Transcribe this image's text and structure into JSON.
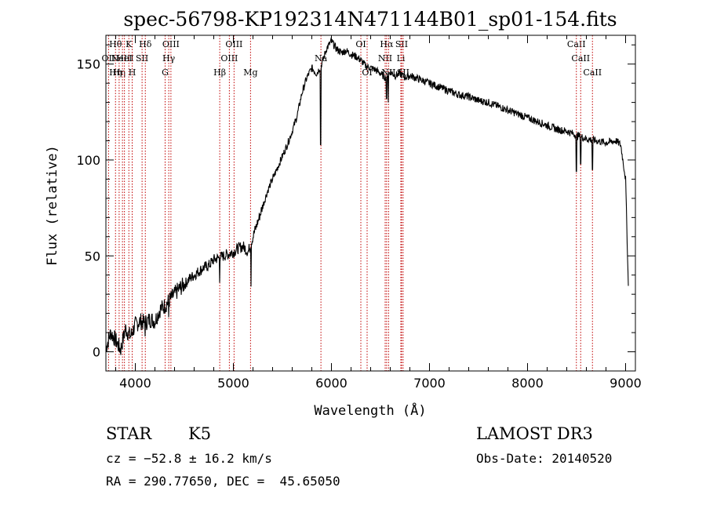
{
  "chart_data": {
    "type": "line",
    "title": "spec-56798-KP192314N471144B01_sp01-154.fits",
    "xlabel": "Wavelength (Å)",
    "ylabel": "Flux (relative)",
    "xlim": [
      3700,
      9100
    ],
    "ylim": [
      -10,
      165
    ],
    "x_ticks": [
      4000,
      5000,
      6000,
      7000,
      8000,
      9000
    ],
    "y_ticks": [
      0,
      50,
      100,
      150
    ],
    "x_tick_labels": [
      "4000",
      "5000",
      "6000",
      "7000",
      "8000",
      "9000"
    ],
    "y_tick_labels": [
      "0",
      "50",
      "100",
      "150"
    ],
    "grid": false,
    "series": [
      {
        "name": "spectrum",
        "color": "#000000",
        "points": [
          [
            3700,
            2
          ],
          [
            3750,
            10
          ],
          [
            3800,
            6
          ],
          [
            3850,
            1
          ],
          [
            3900,
            12
          ],
          [
            3950,
            8
          ],
          [
            4000,
            14
          ],
          [
            4050,
            16
          ],
          [
            4100,
            15
          ],
          [
            4150,
            17
          ],
          [
            4200,
            16
          ],
          [
            4250,
            22
          ],
          [
            4300,
            24
          ],
          [
            4350,
            27
          ],
          [
            4400,
            30
          ],
          [
            4450,
            33
          ],
          [
            4500,
            35
          ],
          [
            4550,
            38
          ],
          [
            4600,
            40
          ],
          [
            4650,
            42
          ],
          [
            4700,
            44
          ],
          [
            4750,
            45
          ],
          [
            4800,
            48
          ],
          [
            4850,
            49
          ],
          [
            4900,
            50
          ],
          [
            4950,
            51
          ],
          [
            5000,
            52
          ],
          [
            5050,
            54
          ],
          [
            5100,
            55
          ],
          [
            5150,
            52
          ],
          [
            5200,
            60
          ],
          [
            5250,
            68
          ],
          [
            5300,
            76
          ],
          [
            5350,
            84
          ],
          [
            5400,
            90
          ],
          [
            5450,
            96
          ],
          [
            5500,
            102
          ],
          [
            5550,
            108
          ],
          [
            5600,
            115
          ],
          [
            5650,
            123
          ],
          [
            5700,
            135
          ],
          [
            5750,
            143
          ],
          [
            5800,
            148
          ],
          [
            5850,
            145
          ],
          [
            5900,
            150
          ],
          [
            5950,
            158
          ],
          [
            6000,
            162
          ],
          [
            6050,
            158
          ],
          [
            6100,
            156
          ],
          [
            6150,
            157
          ],
          [
            6200,
            155
          ],
          [
            6250,
            154
          ],
          [
            6300,
            152
          ],
          [
            6350,
            149
          ],
          [
            6400,
            148
          ],
          [
            6450,
            147
          ],
          [
            6500,
            145
          ],
          [
            6550,
            143
          ],
          [
            6600,
            146
          ],
          [
            6650,
            144
          ],
          [
            6700,
            145
          ],
          [
            6750,
            143
          ],
          [
            6800,
            144
          ],
          [
            6900,
            142
          ],
          [
            7000,
            140
          ],
          [
            7100,
            138
          ],
          [
            7200,
            136
          ],
          [
            7300,
            134
          ],
          [
            7400,
            133
          ],
          [
            7500,
            131
          ],
          [
            7600,
            130
          ],
          [
            7700,
            128
          ],
          [
            7800,
            126
          ],
          [
            7900,
            124
          ],
          [
            8000,
            122
          ],
          [
            8100,
            120
          ],
          [
            8200,
            118
          ],
          [
            8300,
            116
          ],
          [
            8400,
            115
          ],
          [
            8500,
            113
          ],
          [
            8600,
            111
          ],
          [
            8700,
            110
          ],
          [
            8800,
            109
          ],
          [
            8900,
            110
          ],
          [
            8950,
            108
          ],
          [
            9000,
            90
          ],
          [
            9030,
            30
          ]
        ],
        "dips": [
          [
            4100,
            8
          ],
          [
            4340,
            18
          ],
          [
            4860,
            36
          ],
          [
            5180,
            34
          ],
          [
            5890,
            108
          ],
          [
            6563,
            132
          ],
          [
            6580,
            130
          ],
          [
            8498,
            94
          ],
          [
            8542,
            98
          ],
          [
            8662,
            95
          ]
        ]
      }
    ],
    "line_markers": [
      {
        "wavelength": 3727,
        "labels": [
          "OII"
        ],
        "rows": [
          1
        ]
      },
      {
        "wavelength": 3798,
        "labels": [
          "Hθ",
          "Hη"
        ],
        "rows": [
          0,
          2
        ]
      },
      {
        "wavelength": 3835,
        "labels": [
          "Hη"
        ],
        "rows": [
          2
        ]
      },
      {
        "wavelength": 3869,
        "labels": [
          "NeIII"
        ],
        "rows": [
          1
        ]
      },
      {
        "wavelength": 3889,
        "labels": [
          "HeI"
        ],
        "rows": [
          1
        ]
      },
      {
        "wavelength": 3934,
        "labels": [
          "K"
        ],
        "rows": [
          0
        ]
      },
      {
        "wavelength": 3968,
        "labels": [
          "H"
        ],
        "rows": [
          2
        ]
      },
      {
        "wavelength": 4069,
        "labels": [
          "SII"
        ],
        "rows": [
          1
        ]
      },
      {
        "wavelength": 4102,
        "labels": [
          "Hδ"
        ],
        "rows": [
          0
        ]
      },
      {
        "wavelength": 4304,
        "labels": [
          "G"
        ],
        "rows": [
          2
        ]
      },
      {
        "wavelength": 4341,
        "labels": [
          "Hγ"
        ],
        "rows": [
          1
        ]
      },
      {
        "wavelength": 4363,
        "labels": [
          "OIII"
        ],
        "rows": [
          0
        ]
      },
      {
        "wavelength": 4861,
        "labels": [
          "Hβ"
        ],
        "rows": [
          2
        ]
      },
      {
        "wavelength": 4959,
        "labels": [
          "OIII"
        ],
        "rows": [
          1
        ]
      },
      {
        "wavelength": 5007,
        "labels": [
          "OIII"
        ],
        "rows": [
          0
        ]
      },
      {
        "wavelength": 5175,
        "labels": [
          "Mg"
        ],
        "rows": [
          2
        ]
      },
      {
        "wavelength": 5893,
        "labels": [
          "Na"
        ],
        "rows": [
          1
        ]
      },
      {
        "wavelength": 6300,
        "labels": [
          "OI"
        ],
        "rows": [
          0
        ]
      },
      {
        "wavelength": 6364,
        "labels": [
          "OI"
        ],
        "rows": [
          2
        ]
      },
      {
        "wavelength": 6548,
        "labels": [
          "NII"
        ],
        "rows": [
          1
        ]
      },
      {
        "wavelength": 6563,
        "labels": [
          "Hα"
        ],
        "rows": [
          0
        ]
      },
      {
        "wavelength": 6583,
        "labels": [
          "NII"
        ],
        "rows": [
          2
        ]
      },
      {
        "wavelength": 6708,
        "labels": [
          "Li"
        ],
        "rows": [
          1
        ]
      },
      {
        "wavelength": 6716,
        "labels": [
          "SII"
        ],
        "rows": [
          0
        ]
      },
      {
        "wavelength": 6731,
        "labels": [
          "SII"
        ],
        "rows": [
          2
        ]
      },
      {
        "wavelength": 8498,
        "labels": [
          "CaII"
        ],
        "rows": [
          0
        ]
      },
      {
        "wavelength": 8542,
        "labels": [
          "CaII"
        ],
        "rows": [
          1
        ]
      },
      {
        "wavelength": 8662,
        "labels": [
          "CaII"
        ],
        "rows": [
          2
        ]
      }
    ],
    "marker_color": "#c00000",
    "line_color": "#000000"
  },
  "footer": {
    "object_class": "STAR",
    "subclass": "K5",
    "survey": "LAMOST DR3",
    "cz": "cz = −52.8 ± 16.2 km/s",
    "obs_date": "Obs-Date: 20140520",
    "radec": "RA = 290.77650, DEC =  45.65050"
  }
}
